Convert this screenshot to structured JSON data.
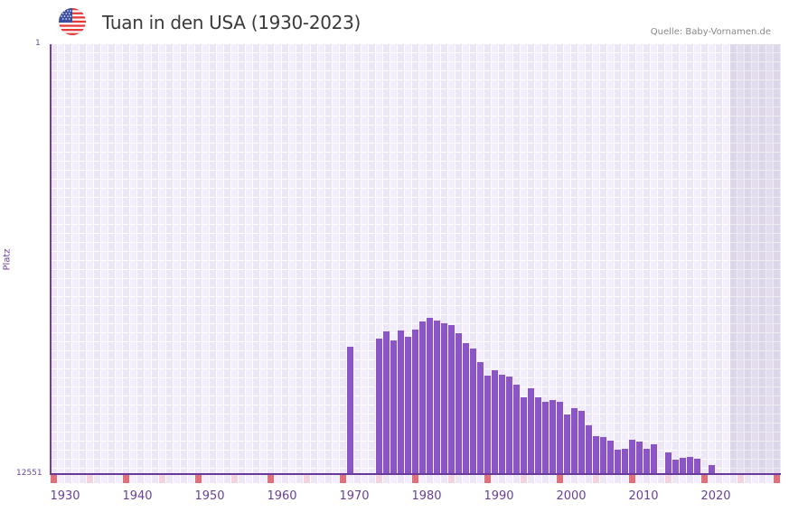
{
  "header": {
    "title": "Tuan in den USA (1930-2023)",
    "source": "Quelle: Baby-Vornamen.de",
    "flag_icon": "us-flag-icon"
  },
  "axes": {
    "y_title": "Platz",
    "y_top_label": "1",
    "y_bottom_label": "12551",
    "x_labels": [
      "1930",
      "1940",
      "1950",
      "1960",
      "1970",
      "1980",
      "1990",
      "2000",
      "2010",
      "2020"
    ]
  },
  "colors": {
    "bar": "#8b55c5",
    "axis": "#6a3a9a",
    "marker_strong": "#e0707a",
    "marker_light": "#f4d4dc",
    "grid_a": "#ece6f7",
    "grid_b": "#f2eefa"
  },
  "chart_data": {
    "type": "bar",
    "title": "Tuan in den USA (1930-2023)",
    "xlabel": "",
    "ylabel": "Platz",
    "y_inverted": true,
    "ylim": [
      1,
      12551
    ],
    "xlim": [
      1929,
      2029
    ],
    "x_ticks": [
      1930,
      1940,
      1950,
      1960,
      1970,
      1980,
      1990,
      2000,
      2010,
      2020
    ],
    "grid": true,
    "categories": [
      1970,
      1974,
      1975,
      1976,
      1977,
      1978,
      1979,
      1980,
      1981,
      1982,
      1983,
      1984,
      1985,
      1986,
      1987,
      1988,
      1989,
      1990,
      1991,
      1992,
      1993,
      1994,
      1995,
      1996,
      1997,
      1998,
      1999,
      2000,
      2001,
      2002,
      2003,
      2004,
      2005,
      2006,
      2007,
      2008,
      2009,
      2010,
      2011,
      2012,
      2014,
      2015,
      2016,
      2017,
      2018,
      2020
    ],
    "values": [
      8833,
      8596,
      8385,
      8648,
      8358,
      8543,
      8332,
      8095,
      7989,
      8068,
      8147,
      8200,
      8437,
      8727,
      8885,
      9281,
      9676,
      9518,
      9650,
      9703,
      9940,
      10309,
      10045,
      10309,
      10441,
      10388,
      10441,
      10810,
      10625,
      10704,
      11127,
      11443,
      11469,
      11575,
      11838,
      11812,
      11548,
      11601,
      11812,
      11680,
      11917,
      12128,
      12075,
      12049,
      12102,
      12287
    ],
    "shaded_range": [
      2023,
      2029
    ],
    "annotations": [
      "Quelle: Baby-Vornamen.de"
    ]
  }
}
